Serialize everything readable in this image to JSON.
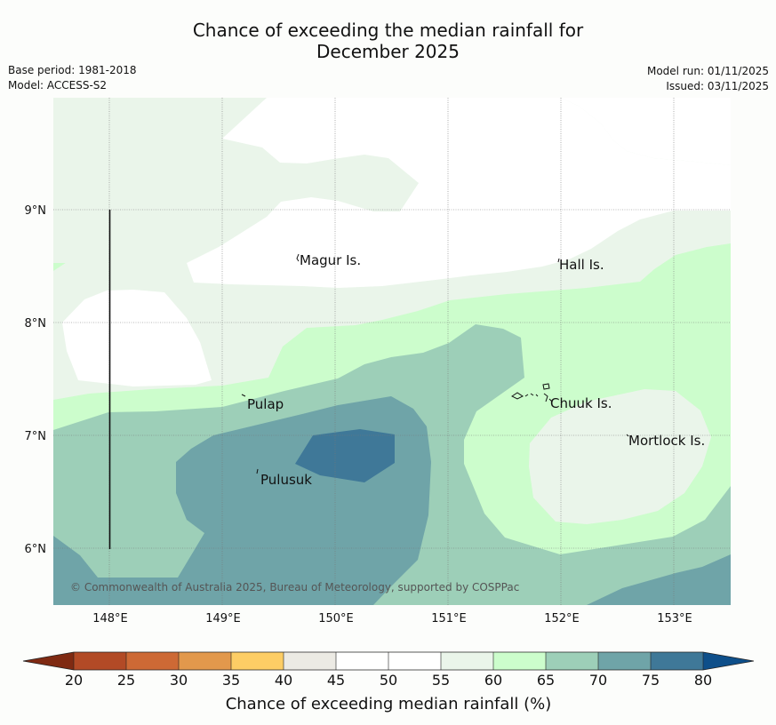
{
  "title": {
    "line1": "Chance of exceeding the median rainfall for",
    "line2": "December 2025"
  },
  "meta_left": {
    "base_period": "Base period: 1981-2018",
    "model": "Model: ACCESS-S2"
  },
  "meta_right": {
    "model_run": "Model run: 01/11/2025",
    "issued": "Issued: 03/11/2025"
  },
  "map": {
    "lat_labels": [
      "9°N",
      "8°N",
      "7°N",
      "6°N"
    ],
    "lon_labels": [
      "148°E",
      "149°E",
      "150°E",
      "151°E",
      "152°E",
      "153°E"
    ],
    "places": [
      "Magur Is.",
      "Hall Is.",
      "Pulap",
      "Chuuk Is.",
      "Mortlock Is.",
      "Pulusuk"
    ],
    "copyright": "© Commonwealth of Australia 2025, Bureau of Meteorology, supported by COSPPac"
  },
  "colorbar": {
    "ticks": [
      "20",
      "25",
      "30",
      "35",
      "40",
      "45",
      "50",
      "55",
      "60",
      "65",
      "70",
      "75",
      "80"
    ],
    "title": "Chance of exceeding median rainfall (%)",
    "colors": {
      "lt20": "#7f2a12",
      "20-25": "#b24a26",
      "25-30": "#cd6935",
      "30-35": "#e2984c",
      "35-40": "#fdcd65",
      "40-45": "#eceae4",
      "45-50": "#ffffff",
      "50-55": "#ffffff",
      "55-60": "#eaf5ea",
      "60-65": "#ccfdcc",
      "65-70": "#9dcfb8",
      "70-75": "#6fa4a8",
      "75-80": "#3f7898",
      "gt80": "#0e4f8a"
    }
  }
}
